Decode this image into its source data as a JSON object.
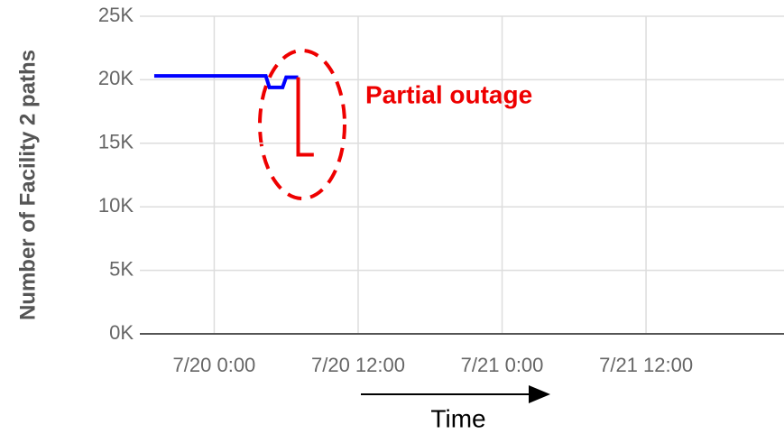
{
  "chart_data": {
    "type": "line",
    "y_label": "Number of Facility 2 paths",
    "x_label": "Time",
    "annotation": "Partial outage",
    "xlim": [
      -6.2,
      47.5
    ],
    "xticks": [
      {
        "value": 0,
        "label": "7/20 0:00"
      },
      {
        "value": 12,
        "label": "7/20 12:00"
      },
      {
        "value": 24,
        "label": "7/21 0:00"
      },
      {
        "value": 36,
        "label": "7/21 12:00"
      }
    ],
    "ylim": [
      0,
      25000
    ],
    "yticks": [
      {
        "value": 0,
        "label": "0K"
      },
      {
        "value": 5000,
        "label": "5K"
      },
      {
        "value": 10000,
        "label": "10K"
      },
      {
        "value": 15000,
        "label": "15K"
      },
      {
        "value": 20000,
        "label": "20K"
      },
      {
        "value": 25000,
        "label": "25K"
      }
    ],
    "grid": true,
    "series": [
      {
        "color": "#0000ff",
        "x": [
          -5,
          4.3,
          4.6,
          5.7,
          6.0,
          7.0
        ],
        "values": [
          20300,
          20300,
          19400,
          19400,
          20200,
          20200
        ]
      },
      {
        "color": "#ee0000",
        "x": [
          7.0,
          7.0,
          7.2,
          8.3
        ],
        "values": [
          20200,
          14100,
          14100,
          14100
        ]
      }
    ]
  }
}
